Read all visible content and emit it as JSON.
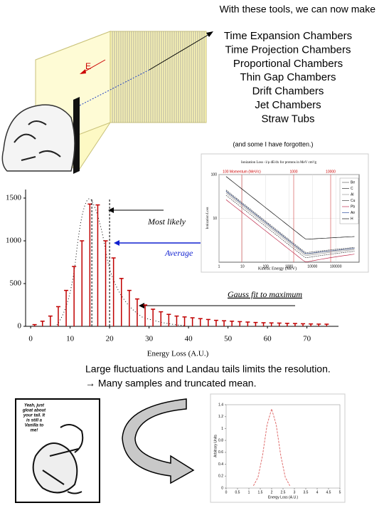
{
  "heading": "With these tools, we can now make",
  "chamber_list": [
    "Time Expansion Chambers",
    "Time Projection Chambers",
    "Proportional Chambers",
    "Thin Gap Chambers",
    "Drift Chambers",
    "Jet Chambers",
    "Straw Tubs"
  ],
  "note": "(and some I have forgotten.)",
  "box_label": "E",
  "ionization_plot": {
    "type": "line",
    "title": "Ionization Loss -1/ρ dE/dx for protons in MeV cm²/g",
    "momentum_labels": [
      "100 Momentum (MeV/c)",
      "1000",
      "10000"
    ],
    "x_label": "Kinetic Energy (MeV)",
    "y_label": "Ionization Loss",
    "log_x": true,
    "log_y": true,
    "xlim": [
      1,
      1000000
    ],
    "xticks": [
      1,
      10,
      100,
      1000,
      10000,
      100000
    ],
    "ylim": [
      1,
      100
    ],
    "yticks": [
      10,
      100
    ],
    "legend": [
      "Be",
      "C",
      "Al",
      "Cu",
      "Pb",
      "Air",
      "H"
    ]
  },
  "histogram": {
    "type": "bar",
    "x_label": "Energy Loss (A.U.)",
    "xlim": [
      -2,
      78
    ],
    "xticks": [
      0,
      10,
      20,
      30,
      40,
      50,
      60,
      70
    ],
    "ylim": [
      0,
      1600
    ],
    "yticks": [
      0,
      500,
      1000,
      1500
    ],
    "x": [
      1,
      3,
      5,
      7,
      9,
      11,
      13,
      15,
      17,
      19,
      21,
      23,
      25,
      27,
      29,
      31,
      33,
      35,
      37,
      39,
      41,
      43,
      45,
      47,
      49,
      51,
      53,
      55,
      57,
      59,
      61,
      63,
      65,
      67,
      69,
      71,
      73,
      75
    ],
    "values": [
      20,
      60,
      120,
      230,
      420,
      700,
      1000,
      1430,
      1420,
      1000,
      800,
      560,
      420,
      320,
      250,
      200,
      170,
      140,
      120,
      110,
      100,
      90,
      80,
      70,
      65,
      60,
      55,
      50,
      45,
      42,
      40,
      38,
      35,
      33,
      30,
      28,
      26,
      25
    ],
    "color": "#c00000",
    "annotations": [
      {
        "text": "Most likely",
        "x": 15.5
      },
      {
        "text": "Average",
        "x": 20
      },
      {
        "text": "Gauss fit to maximum"
      }
    ]
  },
  "caption_lines": [
    "Large fluctuations and Landau tails limits the resolution.",
    "→ Many samples and truncated mean."
  ],
  "comic_text": [
    "Yeah, just",
    "gloat about",
    "your tail. It",
    "is still a",
    "Vanilla to",
    "me!"
  ],
  "gauss_plot": {
    "type": "line",
    "x_label": "Energy Loss (A.U.)",
    "y_label": "Arbitrary Units",
    "xlim": [
      0,
      5
    ],
    "xticks": [
      0,
      0.5,
      1,
      1.5,
      2,
      2.5,
      3,
      3.5,
      4,
      4.5,
      5
    ],
    "ylim": [
      0,
      1.4
    ],
    "yticks": [
      0,
      0.2,
      0.4,
      0.6,
      0.8,
      1,
      1.2,
      1.4
    ],
    "x": [
      1.2,
      1.4,
      1.6,
      1.8,
      2,
      2.2,
      2.4,
      2.6,
      2.8
    ],
    "values": [
      0.038,
      0.18,
      0.547,
      1.065,
      1.33,
      1.065,
      0.547,
      0.18,
      0.038
    ],
    "color": "#e07070"
  }
}
